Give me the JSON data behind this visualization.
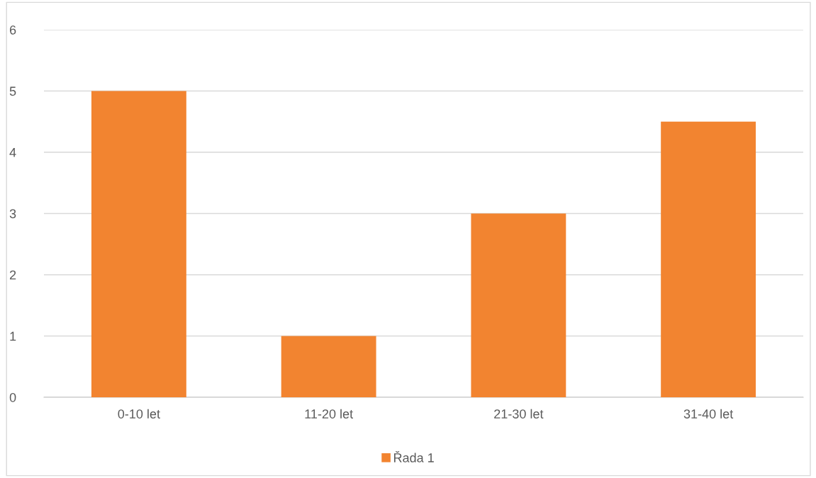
{
  "chart_data": {
    "type": "bar",
    "categories": [
      "0-10 let",
      "11-20 let",
      "21-30 let",
      "31-40 let"
    ],
    "series": [
      {
        "name": "Řada 1",
        "color": "#f28430",
        "values": [
          5,
          1,
          3,
          4.5
        ]
      }
    ],
    "ylim": [
      0,
      6
    ],
    "yticks": [
      0,
      1,
      2,
      3,
      4,
      5,
      6
    ],
    "grid": "y",
    "legend": "bottom"
  }
}
